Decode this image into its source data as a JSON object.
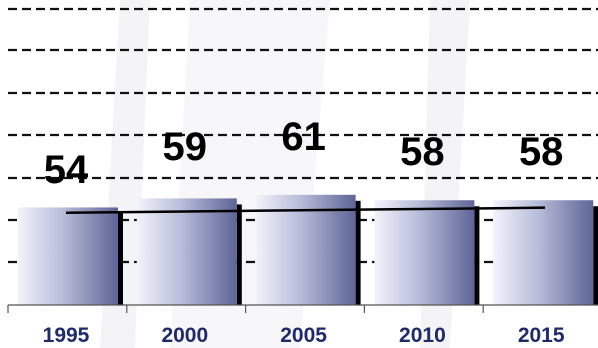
{
  "chart_data": {
    "type": "bar",
    "categories": [
      "1995",
      "2000",
      "2005",
      "2010",
      "2015"
    ],
    "values": [
      54,
      59,
      61,
      58,
      58
    ],
    "trendline": true,
    "grid": true,
    "legend": "none",
    "colors": {
      "bar_light": "#f2f3fb",
      "bar_mid": "#b7bcd9",
      "bar_dark": "#5e6496",
      "bar_shadow": "#000000",
      "tick_text": "#1f2a6b"
    }
  }
}
